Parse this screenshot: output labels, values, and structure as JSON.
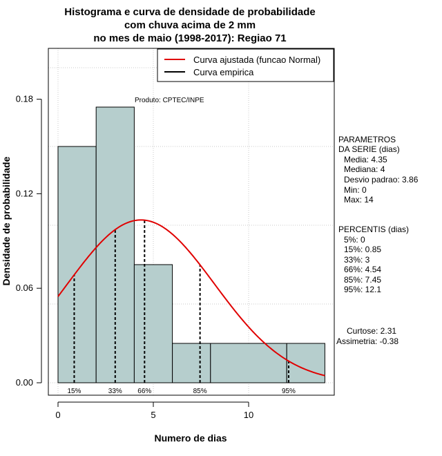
{
  "chart_data": {
    "type": "histogram",
    "title_lines": [
      "Histograma e curva de densidade de probabilidade",
      "com chuva acima de 2 mm",
      "no mes de maio (1998-2017): Regiao 71"
    ],
    "xlabel": "Numero de dias",
    "ylabel": "Densidade de probabilidade",
    "xlim": [
      -0.5,
      14.5
    ],
    "ylim": [
      -0.008,
      0.2
    ],
    "x_ticks": [
      0,
      5,
      10
    ],
    "y_ticks": [
      0.0,
      0.06,
      0.12,
      0.18
    ],
    "y_tick_labels": [
      "0.00",
      "0.06",
      "0.12",
      "0.18"
    ],
    "grid": true,
    "bins": [
      {
        "start": 0,
        "end": 2,
        "density": 0.15
      },
      {
        "start": 2,
        "end": 4,
        "density": 0.175
      },
      {
        "start": 4,
        "end": 6,
        "density": 0.075
      },
      {
        "start": 6,
        "end": 8,
        "density": 0.025
      },
      {
        "start": 8,
        "end": 12,
        "density": 0.025
      },
      {
        "start": 12,
        "end": 14,
        "density": 0.025
      }
    ],
    "bar_color": "#b6cecd",
    "fitted_curve": {
      "name": "Curva ajustada (funcao Normal)",
      "color": "#e00000",
      "mean": 4.35,
      "sd": 3.86,
      "x_range": [
        0,
        14
      ]
    },
    "empirical_curve": {
      "name": "Curva empirica",
      "color": "#000000"
    },
    "percentile_lines": [
      {
        "label": "15%",
        "x": 0.85
      },
      {
        "label": "33%",
        "x": 3
      },
      {
        "label": "66%",
        "x": 4.54
      },
      {
        "label": "85%",
        "x": 7.45
      },
      {
        "label": "95%",
        "x": 12.1
      }
    ],
    "legend_position": "top-right",
    "annotation": "Produto: CPTEC/INPE"
  },
  "side_panel": {
    "parametros_title_1": "PARAMETROS",
    "parametros_title_2": "DA SERIE (dias)",
    "media": "Media: 4.35",
    "mediana": "Mediana: 4",
    "desvio": "Desvio padrao: 3.86",
    "min": "Min: 0",
    "max": "Max: 14",
    "percentis_title": "PERCENTIS (dias)",
    "p5": "5%: 0",
    "p15": "15%: 0.85",
    "p33": "33%: 3",
    "p66": "66%: 4.54",
    "p85": "85%: 7.45",
    "p95": "95%: 12.1",
    "curtose": "Curtose: 2.31",
    "assimetria": "Assimetria: -0.38"
  }
}
